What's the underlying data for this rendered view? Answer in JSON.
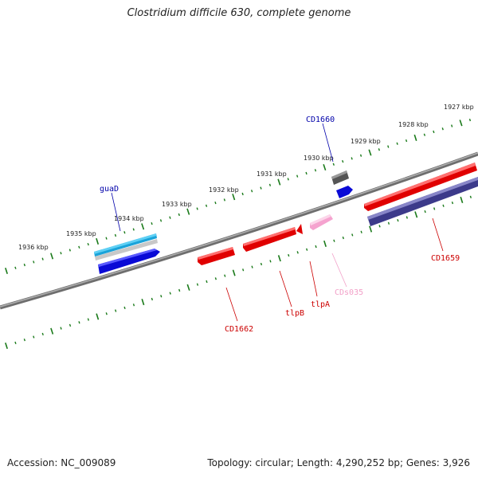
{
  "title": "Clostridium difficile 630, complete genome",
  "footer": {
    "accession": "Accession: NC_009089",
    "summary": "Topology: circular; Length: 4,290,252 bp; Genes: 3,926"
  },
  "colors": {
    "tick": "#1a7a1a",
    "backbone": "#7a7a7a",
    "label_red": "#cc0000",
    "label_blue": "#0000aa",
    "label_pink": "#f2a0c8"
  },
  "scale_labels": [
    "1927 kbp",
    "1928 kbp",
    "1929 kbp",
    "1930 kbp",
    "1931 kbp",
    "1932 kbp",
    "1933 kbp",
    "1934 kbp",
    "1935 kbp",
    "1936 kbp"
  ],
  "gene_labels": [
    {
      "id": "guaD",
      "text": "guaD",
      "color": "#0000aa"
    },
    {
      "id": "cd1660",
      "text": "CD1660",
      "color": "#0000aa"
    },
    {
      "id": "cd1659",
      "text": "CD1659",
      "color": "#cc0000"
    },
    {
      "id": "cds035",
      "text": "CDs035",
      "color": "#f2a0c8"
    },
    {
      "id": "tlpa",
      "text": "tlpA",
      "color": "#cc0000"
    },
    {
      "id": "tlpb",
      "text": "tlpB",
      "color": "#cc0000"
    },
    {
      "id": "cd1662",
      "text": "CD1662",
      "color": "#cc0000"
    }
  ]
}
